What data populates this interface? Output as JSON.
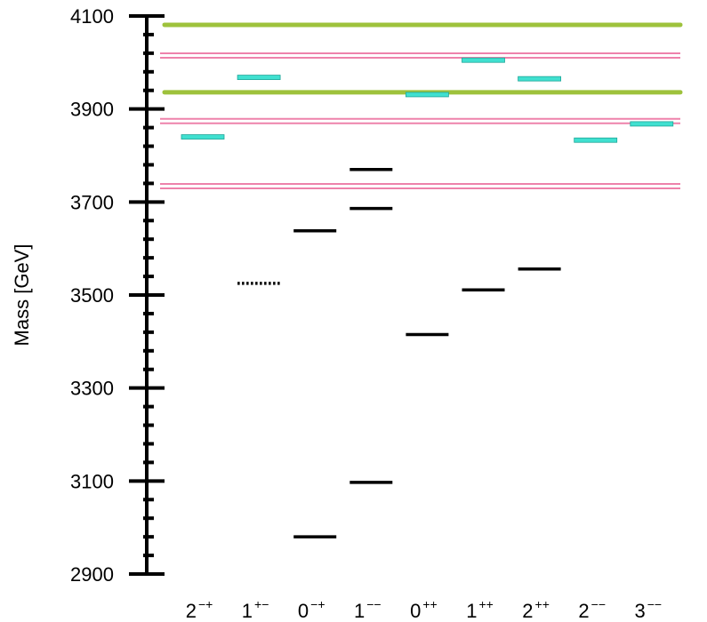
{
  "chart_data": {
    "type": "scatter",
    "title": "",
    "ylabel": "Mass [GeV]",
    "xlabel": "",
    "ylim": [
      2900,
      4100
    ],
    "yticks_major": [
      2900,
      3100,
      3300,
      3500,
      3700,
      3900,
      4100
    ],
    "yticks_minor_step": 40,
    "grid": false,
    "categories": [
      {
        "base": "2",
        "sup": "−+"
      },
      {
        "base": "1",
        "sup": "+−"
      },
      {
        "base": "0",
        "sup": "−+"
      },
      {
        "base": "1",
        "sup": "−−"
      },
      {
        "base": "0",
        "sup": "++"
      },
      {
        "base": "1",
        "sup": "++"
      },
      {
        "base": "2",
        "sup": "++"
      },
      {
        "base": "2",
        "sup": "−−"
      },
      {
        "base": "3",
        "sup": "−−"
      }
    ],
    "series": [
      {
        "style": "observed",
        "color": "#000000",
        "points": [
          {
            "category": 1,
            "mass": 3525,
            "dashed": true
          },
          {
            "category": 2,
            "mass": 2980
          },
          {
            "category": 2,
            "mass": 3638
          },
          {
            "category": 3,
            "mass": 3097
          },
          {
            "category": 3,
            "mass": 3686
          },
          {
            "category": 3,
            "mass": 3770
          },
          {
            "category": 4,
            "mass": 3415
          },
          {
            "category": 5,
            "mass": 3511
          },
          {
            "category": 6,
            "mass": 3556
          }
        ]
      },
      {
        "style": "predicted",
        "color": "#40e0d0",
        "points": [
          {
            "category": 0,
            "mass": 3840
          },
          {
            "category": 1,
            "mass": 3968
          },
          {
            "category": 4,
            "mass": 3931
          },
          {
            "category": 5,
            "mass": 4005
          },
          {
            "category": 6,
            "mass": 3965
          },
          {
            "category": 7,
            "mass": 3833
          },
          {
            "category": 8,
            "mass": 3868
          }
        ]
      }
    ],
    "thresholds": [
      {
        "color": "#9ec23c",
        "mass": 4081,
        "style": "single"
      },
      {
        "color": "#9ec23c",
        "mass": 3936,
        "style": "single"
      },
      {
        "color": "#ee82ab",
        "mass": 4015,
        "style": "double"
      },
      {
        "color": "#ee82ab",
        "mass": 3874,
        "style": "double"
      },
      {
        "color": "#ee82ab",
        "mass": 3734,
        "style": "double"
      }
    ]
  }
}
